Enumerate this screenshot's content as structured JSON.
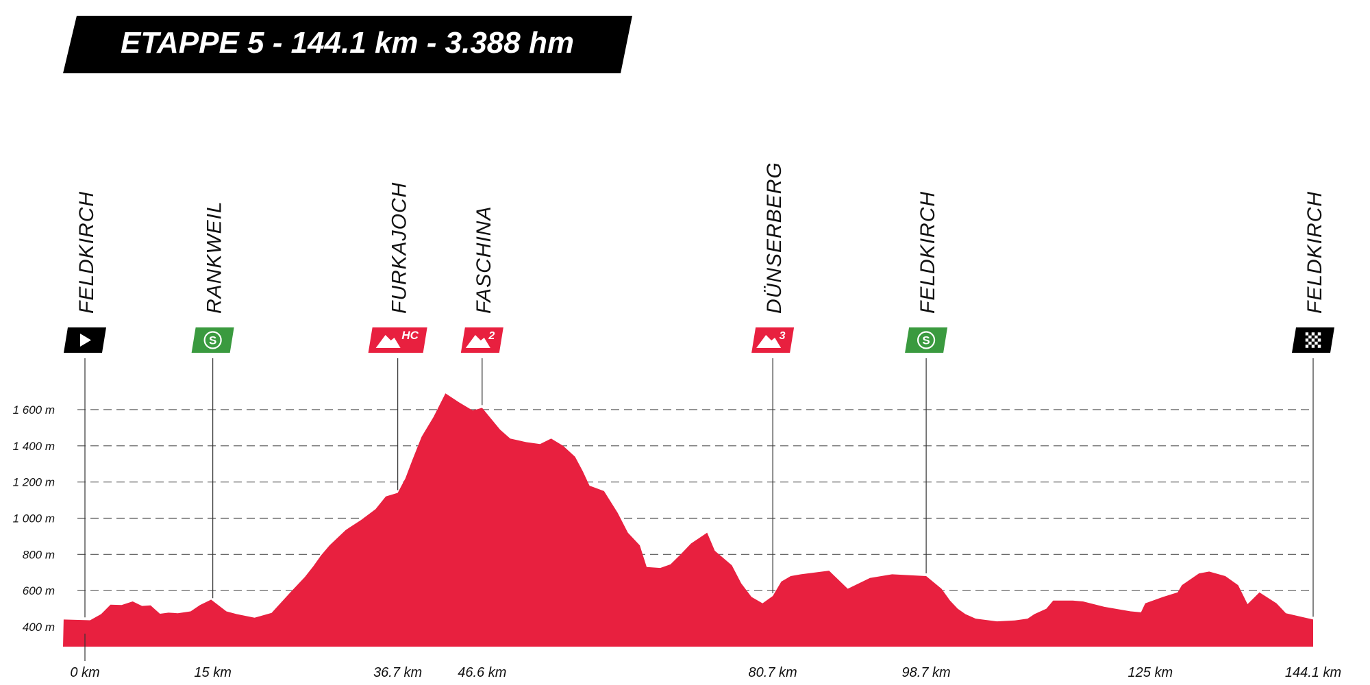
{
  "header": {
    "title": "ETAPPE 5 - 144.1 km - 3.388 hm"
  },
  "colors": {
    "profile_fill": "#E8203F",
    "title_bg": "#000000",
    "title_text": "#FFFFFF",
    "climb_badge": "#E8203F",
    "sprint_badge": "#3A9A3F",
    "start_finish_badge": "#000000",
    "gridline": "#555555",
    "text": "#111111"
  },
  "chart_data": {
    "type": "area",
    "title": "ETAPPE 5 - 144.1 km - 3.388 hm",
    "xlabel": "",
    "ylabel": "",
    "xlim": [
      0,
      144.1
    ],
    "ylim": [
      300,
      1800
    ],
    "grid": true,
    "x_ticks": [
      {
        "value": 0,
        "label": "0 km"
      },
      {
        "value": 15,
        "label": "15 km"
      },
      {
        "value": 36.7,
        "label": "36.7 km"
      },
      {
        "value": 46.6,
        "label": "46.6 km"
      },
      {
        "value": 80.7,
        "label": "80.7 km"
      },
      {
        "value": 98.7,
        "label": "98.7 km"
      },
      {
        "value": 125,
        "label": "125 km"
      },
      {
        "value": 144.1,
        "label": "144.1 km"
      }
    ],
    "y_ticks": [
      {
        "value": 400,
        "label": "400 m"
      },
      {
        "value": 600,
        "label": "600 m"
      },
      {
        "value": 800,
        "label": "800 m"
      },
      {
        "value": 1000,
        "label": "1 000 m"
      },
      {
        "value": 1200,
        "label": "1 200 m"
      },
      {
        "value": 1400,
        "label": "1 400 m"
      },
      {
        "value": 1600,
        "label": "1 600 m"
      }
    ],
    "profile": {
      "x": [
        -2.5,
        0.6,
        1.9,
        3.0,
        4.3,
        5.6,
        6.7,
        7.7,
        8.8,
        9.8,
        10.9,
        12.4,
        13.5,
        14.8,
        16.6,
        17.8,
        19.9,
        21.9,
        24.1,
        25.8,
        26.8,
        27.7,
        28.7,
        30.6,
        32.4,
        34.1,
        35.3,
        36.7,
        37.6,
        38.4,
        39.5,
        40.9,
        42.3,
        43.9,
        45.5,
        46.6,
        48.7,
        49.9,
        51.8,
        53.4,
        54.7,
        56.1,
        57.5,
        58.4,
        59.2,
        60.9,
        62.5,
        63.7,
        65.1,
        65.9,
        67.5,
        68.7,
        69.9,
        71.1,
        73.0,
        73.9,
        75.9,
        77.0,
        78.2,
        79.5,
        80.7,
        81.7,
        82.8,
        84.0,
        87.3,
        89.5,
        90.8,
        92.1,
        94.7,
        98.7,
        100.5,
        101.5,
        102.4,
        103.3,
        104.5,
        107.0,
        109.1,
        110.6,
        111.4,
        112.8,
        113.6,
        115.0,
        115.9,
        117.1,
        119.6,
        122.7,
        123.9,
        124.4,
        126.5,
        128.2,
        128.7,
        130.7,
        131.9,
        133.8,
        135.3,
        136.4,
        137.8,
        139.8,
        140.9,
        144.1
      ],
      "y": [
        440,
        436,
        470,
        522,
        520,
        540,
        515,
        518,
        472,
        478,
        475,
        485,
        520,
        550,
        485,
        470,
        450,
        477,
        590,
        675,
        735,
        795,
        850,
        935,
        990,
        1050,
        1120,
        1140,
        1220,
        1320,
        1450,
        1560,
        1690,
        1640,
        1595,
        1610,
        1490,
        1440,
        1420,
        1410,
        1440,
        1400,
        1340,
        1260,
        1180,
        1150,
        1030,
        920,
        850,
        730,
        725,
        745,
        800,
        860,
        920,
        820,
        740,
        640,
        565,
        530,
        570,
        650,
        680,
        690,
        710,
        610,
        640,
        670,
        690,
        680,
        610,
        545,
        500,
        470,
        445,
        430,
        435,
        445,
        470,
        500,
        545,
        545,
        545,
        540,
        510,
        485,
        480,
        530,
        565,
        590,
        630,
        695,
        705,
        680,
        630,
        525,
        590,
        530,
        475,
        440
      ],
      "_comment": ""
    },
    "waypoints": [
      {
        "name": "FELDKIRCH",
        "km": 0,
        "type": "start",
        "badge_text": ""
      },
      {
        "name": "RANKWEIL",
        "km": 15,
        "type": "sprint",
        "badge_text": "S"
      },
      {
        "name": "FURKAJOCH",
        "km": 36.7,
        "type": "climb",
        "badge_text": "HC"
      },
      {
        "name": "FASCHINA",
        "km": 46.6,
        "type": "climb",
        "badge_text": "2"
      },
      {
        "name": "DÜNSERBERG",
        "km": 80.7,
        "type": "climb",
        "badge_text": "3"
      },
      {
        "name": "FELDKIRCH",
        "km": 98.7,
        "type": "sprint",
        "badge_text": "S"
      },
      {
        "name": "FELDKIRCH",
        "km": 144.1,
        "type": "finish",
        "badge_text": ""
      }
    ]
  }
}
